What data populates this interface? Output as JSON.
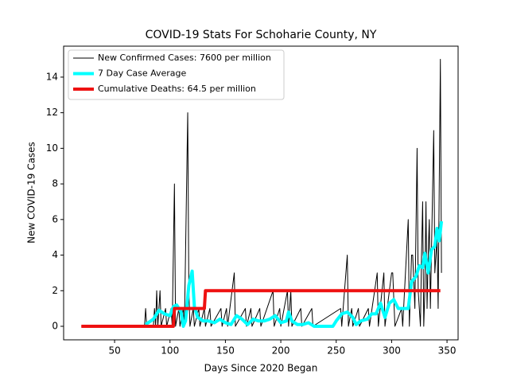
{
  "chart_data": {
    "type": "line",
    "title": "COVID-19 Stats For Schoharie County, NY",
    "x_label": "Days Since 2020 Began",
    "y_label": "New COVID-19 Cases",
    "xlim": [
      4,
      360
    ],
    "ylim": [
      -0.76,
      15.74
    ],
    "xticks": [
      50,
      100,
      150,
      200,
      250,
      300,
      350
    ],
    "yticks": [
      0,
      2,
      4,
      6,
      8,
      10,
      12,
      14
    ],
    "grid": false,
    "legend": "upper left",
    "series": [
      {
        "name": "New Confirmed Cases: 7600 per million",
        "color": "#000000",
        "width": 1,
        "x": [
          20,
          77,
          78,
          79,
          85,
          86,
          87,
          88,
          89,
          91,
          92,
          96,
          97,
          101,
          102,
          104,
          105,
          108,
          109,
          112,
          113,
          116,
          117,
          118,
          121,
          122,
          126,
          127,
          131,
          132,
          136,
          137,
          146,
          147,
          151,
          152,
          158,
          159,
          168,
          169,
          173,
          174,
          181,
          182,
          193,
          194,
          199,
          200,
          206,
          207,
          209,
          210,
          218,
          219,
          228,
          229,
          254,
          255,
          260,
          261,
          264,
          265,
          270,
          271,
          279,
          280,
          287,
          288,
          293,
          294,
          300,
          301,
          303,
          309,
          310,
          315,
          316,
          318,
          319,
          321,
          323,
          324,
          326,
          327,
          328,
          329,
          330,
          331,
          332,
          333,
          334,
          335,
          338,
          339,
          341,
          342,
          344,
          345
        ],
        "values": [
          0,
          0,
          1,
          0,
          0,
          1,
          0,
          2,
          0,
          2,
          0,
          1,
          0,
          1,
          0,
          8,
          0,
          1,
          0,
          1,
          0,
          12,
          2,
          0,
          1,
          0,
          1,
          0,
          1,
          0,
          1,
          0,
          1,
          0,
          1,
          0,
          3,
          0,
          1,
          0,
          1,
          0,
          1,
          0,
          2,
          0,
          1,
          0,
          2,
          0,
          2,
          0,
          1,
          0,
          1,
          0,
          1,
          0,
          4,
          0,
          1,
          0,
          1,
          0,
          1,
          0,
          3,
          0,
          3,
          0,
          3,
          3,
          0,
          1,
          0,
          6,
          0,
          4,
          4,
          1,
          10,
          2,
          0,
          4,
          7,
          0,
          2,
          7,
          1,
          4,
          6,
          1,
          11,
          3,
          5,
          1,
          15,
          3
        ]
      },
      {
        "name": "7 Day Case Average",
        "color": "#00ffff",
        "width": 4,
        "x": [
          78,
          85,
          90,
          95,
          100,
          103,
          106,
          110,
          112,
          114,
          117,
          120,
          122,
          125,
          130,
          135,
          140,
          145,
          150,
          155,
          160,
          165,
          170,
          175,
          180,
          185,
          190,
          195,
          200,
          205,
          207,
          210,
          215,
          220,
          225,
          230,
          240,
          247,
          250,
          255,
          260,
          265,
          268,
          272,
          278,
          282,
          286,
          290,
          294,
          298,
          302,
          306,
          310,
          315,
          318,
          322,
          325,
          328,
          330,
          333,
          336,
          339,
          341,
          343,
          345
        ],
        "values": [
          0.1,
          0.4,
          0.9,
          0.7,
          0.6,
          1.1,
          1.2,
          0.8,
          0,
          0.3,
          2.3,
          3.1,
          1.1,
          0.5,
          0.3,
          0.3,
          0.2,
          0.4,
          0.2,
          0.1,
          0.6,
          0.4,
          0.1,
          0.4,
          0.3,
          0.3,
          0.4,
          0.6,
          0.2,
          0.3,
          0.8,
          0.3,
          0.1,
          0.1,
          0.2,
          0,
          0,
          0,
          0.3,
          0.7,
          0.8,
          0.5,
          0.1,
          0.3,
          0.4,
          0.7,
          0.7,
          1.3,
          0.5,
          1.3,
          1.5,
          1,
          1,
          1,
          2.5,
          2.8,
          3.4,
          3.3,
          4.1,
          3,
          4.3,
          4.5,
          5.5,
          4.8,
          5.9
        ]
      },
      {
        "name": "Cumulative Deaths: 64.5 per million",
        "color": "#ee1111",
        "width": 4,
        "x": [
          20,
          103,
          104,
          131,
          132,
          344
        ],
        "values": [
          0,
          0,
          1,
          1,
          2,
          2
        ]
      }
    ]
  }
}
